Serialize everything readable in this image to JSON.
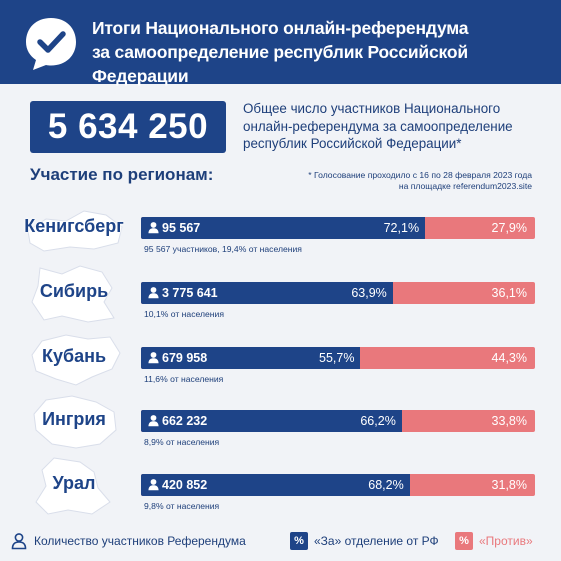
{
  "header": {
    "title_line1": "Итоги Национального онлайн-референдума",
    "title_line2": "за самоопределение республик Российской Федерации",
    "logo_icon": "checkmark-speech-bubble-icon"
  },
  "total": {
    "value": "5 634 250",
    "description": "Общее число участников Национального онлайн-референдума за самоопределение республик Российской Федерации*"
  },
  "section_title": "Участие по регионам:",
  "footnote": "* Голосование проходило с 16 по 28 февраля 2023 года на площадке referendum2023.site",
  "colors": {
    "for": "#1e4488",
    "against": "#e9787c",
    "background": "#f1f3f7",
    "region_shape": "#ffffff"
  },
  "chart_data": {
    "type": "bar",
    "stacked": true,
    "orientation": "horizontal",
    "categories": [
      "Кенигсберг",
      "Сибирь",
      "Кубань",
      "Ингрия",
      "Урал"
    ],
    "series": [
      {
        "name": "«За» отделение от РФ",
        "values": [
          72.1,
          63.9,
          55.7,
          66.2,
          68.2
        ],
        "labels": [
          "72,1%",
          "63,9%",
          "55,7%",
          "66,2%",
          "68,2%"
        ]
      },
      {
        "name": "«Против»",
        "values": [
          27.9,
          36.1,
          44.3,
          33.8,
          31.8
        ],
        "labels": [
          "27,9%",
          "36,1%",
          "44,3%",
          "33,8%",
          "31,8%"
        ]
      }
    ],
    "participants": [
      "95 567",
      "3 775 641",
      "679 958",
      "662 232",
      "420 852"
    ],
    "population_notes": [
      "95 567 участников, 19,4% от населения",
      "10,1% от населения",
      "11,6% от населения",
      "8,9% от населения",
      "9,8% от населения"
    ],
    "xlim": [
      0,
      100
    ]
  },
  "legend": {
    "participants": "Количество участников Референдума",
    "for": "«За» отделение от РФ",
    "against": "«Против»",
    "swatch_symbol": "%",
    "person_icon": "person-icon"
  }
}
